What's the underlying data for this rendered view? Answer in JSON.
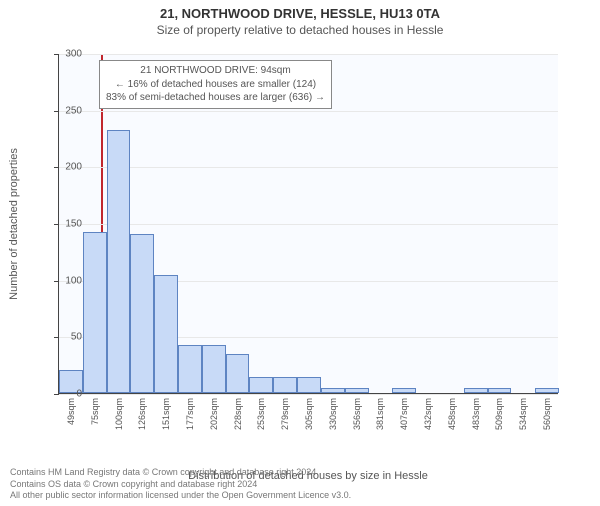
{
  "header": {
    "line1": "21, NORTHWOOD DRIVE, HESSLE, HU13 0TA",
    "line2": "Size of property relative to detached houses in Hessle"
  },
  "chart": {
    "type": "histogram",
    "background_color": "#f9fbff",
    "grid_color": "#e8e8e8",
    "axis_color": "#444444",
    "bar_fill": "#c8daf7",
    "bar_border": "#5e84c2",
    "refline_color": "#c1272d",
    "ylabel": "Number of detached properties",
    "xlabel": "Distribution of detached houses by size in Hessle",
    "ylim": [
      0,
      300
    ],
    "yticks": [
      0,
      50,
      100,
      150,
      200,
      250,
      300
    ],
    "x_start": 49,
    "x_step": 25.5,
    "n_bars": 21,
    "bar_labels": [
      "49sqm",
      "75sqm",
      "100sqm",
      "126sqm",
      "151sqm",
      "177sqm",
      "202sqm",
      "228sqm",
      "253sqm",
      "279sqm",
      "305sqm",
      "330sqm",
      "356sqm",
      "381sqm",
      "407sqm",
      "432sqm",
      "458sqm",
      "483sqm",
      "509sqm",
      "534sqm",
      "560sqm"
    ],
    "bar_values": [
      20,
      142,
      232,
      140,
      104,
      42,
      42,
      34,
      14,
      14,
      14,
      4,
      4,
      0,
      4,
      0,
      0,
      4,
      4,
      0,
      4
    ],
    "refline_x": 94,
    "label_fontsize": 11,
    "tick_fontsize": 10
  },
  "annotation": {
    "line1": "21 NORTHWOOD DRIVE: 94sqm",
    "line2": "← 16% of detached houses are smaller (124)",
    "line3": "83% of semi-detached houses are larger (636) →",
    "box_border": "#888888",
    "box_bg": "#ffffff"
  },
  "footer": {
    "line1": "Contains HM Land Registry data © Crown copyright and database right 2024.",
    "line2": "Contains OS data © Crown copyright and database right 2024",
    "line3": "All other public sector information licensed under the Open Government Licence v3.0."
  }
}
